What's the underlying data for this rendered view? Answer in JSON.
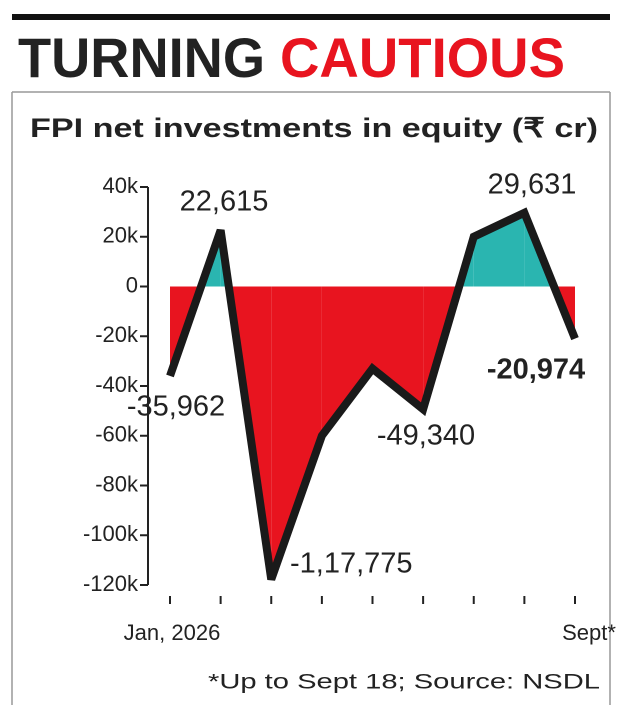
{
  "chart_data": {
    "type": "area-line",
    "title": [
      "TURNING",
      "CAUTIOUS"
    ],
    "title_colors": [
      "#222222",
      "#e8141f"
    ],
    "subtitle": "FPI net investments in equity (₹ cr)",
    "note": "*Up to Sept 18; Source: NSDL",
    "categories": [
      "Jan, 2026",
      null,
      null,
      null,
      null,
      null,
      null,
      null,
      "Sept*"
    ],
    "values": [
      -35962,
      22615,
      -117775,
      -60000,
      -33000,
      -49340,
      20000,
      29631,
      -20974
    ],
    "value_labels": [
      "-35,962",
      "22,615",
      "-1,17,775",
      null,
      null,
      "-49,340",
      null,
      "29,631",
      "-20,974"
    ],
    "line_color": "#1a1a1a",
    "positive_color": "#2ab5b0",
    "negative_color": "#e8141f",
    "ylim": [
      -120000,
      40000
    ],
    "yticks": [
      {
        "value": 40000,
        "label": "40k"
      },
      {
        "value": 20000,
        "label": "20k"
      },
      0,
      {
        "value": -20000,
        "label": "-20k"
      },
      {
        "value": -40000,
        "label": "-40k"
      },
      {
        "value": -60000,
        "label": "-60k"
      },
      {
        "value": -80000,
        "label": "-80k"
      },
      {
        "value": -100000,
        "label": "-100k"
      },
      {
        "value": -120000,
        "label": "-120k"
      }
    ]
  }
}
